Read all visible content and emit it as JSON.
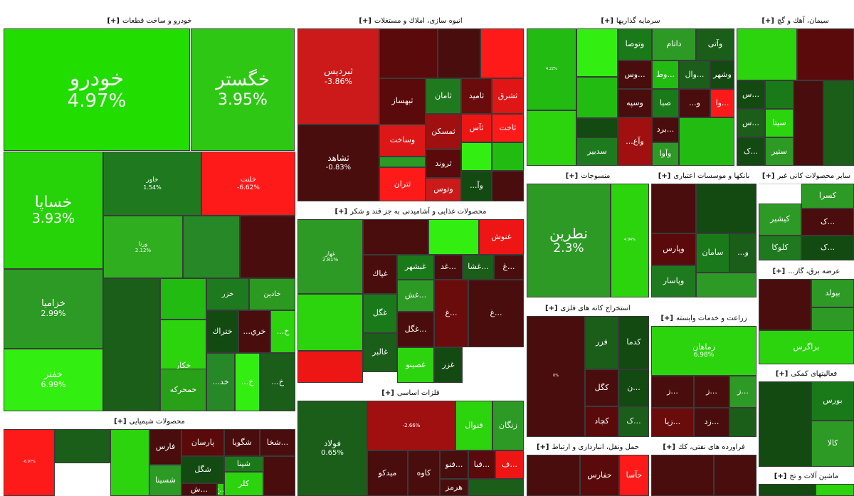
{
  "sectors": [
    {
      "title": "خودرو و ساخت قطعات",
      "expand": "[+]",
      "tiles": [
        {
          "symbol": "خودرو",
          "change": "4.97%",
          "color": "#22dd00"
        },
        {
          "symbol": "خگستر",
          "change": "3.95%",
          "color": "#2ec814"
        },
        {
          "symbol": "خساپا",
          "change": "3.93%",
          "color": "#26d208"
        },
        {
          "symbol": "خاور",
          "change": "1.54%",
          "color": "#1f7a1f"
        },
        {
          "symbol": "خلنت",
          "change": "-6.62%",
          "color": "#ff1a1a"
        },
        {
          "symbol": "ورنا",
          "change": "2.12%",
          "color": "#2fae20"
        },
        {
          "symbol": "",
          "change": "",
          "color": "#268826"
        },
        {
          "symbol": "",
          "change": "",
          "color": "#4a0d0d"
        },
        {
          "symbol": "خزامیا",
          "change": "2.99%",
          "color": "#2c9a24"
        },
        {
          "symbol": "",
          "change": "",
          "color": "#1a5e1a"
        },
        {
          "symbol": "",
          "change": "",
          "color": "#22bb12"
        },
        {
          "symbol": "",
          "change": "",
          "color": "#33ee11"
        },
        {
          "symbol": "خزر",
          "change": "",
          "color": "#1e7a1e"
        },
        {
          "symbol": "خادین",
          "change": "",
          "color": "#2c9a20"
        },
        {
          "symbol": "خکار",
          "change": "",
          "color": "#2bd40d"
        },
        {
          "symbol": "خفنر",
          "change": "6.99%",
          "color": "#33ee11"
        },
        {
          "symbol": "خمحرکه",
          "change": "",
          "color": "#28a018"
        },
        {
          "symbol": "ختراك",
          "change": "",
          "color": "#124a12"
        },
        {
          "symbol": "خري...",
          "change": "",
          "color": "#4a0d0d"
        },
        {
          "symbol": "خ...",
          "change": "",
          "color": "#2bd40d"
        },
        {
          "symbol": "خد...",
          "change": "",
          "color": "#268826"
        },
        {
          "symbol": "خ...",
          "change": "",
          "color": "#33ee11"
        },
        {
          "symbol": "خ...",
          "change": "",
          "color": "#1a5e1a"
        }
      ]
    },
    {
      "title": "انبوه سازی، املاك و مستغلات",
      "expand": "[+]",
      "tiles": [
        {
          "symbol": "ثبردیس",
          "change": "-3.86%",
          "color": "#cc1a1a"
        },
        {
          "symbol": "",
          "change": "",
          "color": "#5a0a0a"
        },
        {
          "symbol": "",
          "change": "",
          "color": "#4a0d0d"
        },
        {
          "symbol": "",
          "change": "",
          "color": "#ff1a1a"
        },
        {
          "symbol": "ثبهساز",
          "change": "",
          "color": "#5a0a0a"
        },
        {
          "symbol": "ثامان",
          "change": "",
          "color": "#1f7a1f"
        },
        {
          "symbol": "ثامید",
          "change": "",
          "color": "#6a0c0c"
        },
        {
          "symbol": "ثشرق",
          "change": "",
          "color": "#e01515"
        },
        {
          "symbol": "ثشاهد",
          "change": "-0.83%",
          "color": "#4a0d0d"
        },
        {
          "symbol": "وساخت",
          "change": "",
          "color": "#dd1717"
        },
        {
          "symbol": "ثمسكن",
          "change": "",
          "color": "#a01010"
        },
        {
          "symbol": "ثآس",
          "change": "",
          "color": "#ee1515"
        },
        {
          "symbol": "ثاخت",
          "change": "",
          "color": "#ff1a1a"
        },
        {
          "symbol": "ثروند",
          "change": "",
          "color": "#5a0a0a"
        },
        {
          "symbol": "",
          "change": "",
          "color": "#33ee11"
        },
        {
          "symbol": "",
          "change": "",
          "color": "#22bb12"
        },
        {
          "symbol": "ثتران",
          "change": "",
          "color": "#ff1a1a"
        },
        {
          "symbol": "وتوس",
          "change": "",
          "color": "#cc1a1a"
        },
        {
          "symbol": "وآ...",
          "change": "",
          "color": "#124a12"
        },
        {
          "symbol": "",
          "change": "",
          "color": "#4a0d0d"
        },
        {
          "symbol": "",
          "change": "",
          "color": "#2c9a24"
        }
      ]
    },
    {
      "title": "سرمایه گذاریها",
      "expand": "[+]",
      "tiles": [
        {
          "symbol": "",
          "change": "4.22%",
          "color": "#22bb12"
        },
        {
          "symbol": "",
          "change": "",
          "color": "#33ee11"
        },
        {
          "symbol": "وتوصا",
          "change": "",
          "color": "#1a7a1a"
        },
        {
          "symbol": "داتام",
          "change": "",
          "color": "#2c9a24"
        },
        {
          "symbol": "وآتی",
          "change": "",
          "color": "#1a5e1a"
        },
        {
          "symbol": "",
          "change": "",
          "color": "#22bb12"
        },
        {
          "symbol": "...وس",
          "change": "",
          "color": "#4a0d0d"
        },
        {
          "symbol": "...وط",
          "change": "",
          "color": "#22bb12"
        },
        {
          "symbol": "...وال",
          "change": "",
          "color": "#1a5e1a"
        },
        {
          "symbol": "وشهر",
          "change": "",
          "color": "#124a12"
        },
        {
          "symbol": "",
          "change": "",
          "color": "#124a12"
        },
        {
          "symbol": "وسپه",
          "change": "",
          "color": "#4a0d0d"
        },
        {
          "symbol": "صبا",
          "change": "",
          "color": "#1a7a1a"
        },
        {
          "symbol": "و...",
          "change": "",
          "color": "#4a0d0d"
        },
        {
          "symbol": "...وا",
          "change": "",
          "color": "#ff1a1a"
        },
        {
          "symbol": "",
          "change": "",
          "color": "#2bd40d"
        },
        {
          "symbol": "...برد",
          "change": "",
          "color": "#4a0d0d"
        },
        {
          "symbol": "وآوا",
          "change": "",
          "color": "#2c9a24"
        },
        {
          "symbol": "سدبیر",
          "change": "",
          "color": "#1e7a1e"
        },
        {
          "symbol": "وآع...",
          "change": "",
          "color": "#a01010"
        },
        {
          "symbol": "",
          "change": "",
          "color": "#22bb12"
        }
      ]
    },
    {
      "title": "سیمان، آهك و گچ",
      "expand": "[+]",
      "tiles": [
        {
          "symbol": "",
          "change": "",
          "color": "#2bd40d"
        },
        {
          "symbol": "",
          "change": "",
          "color": "#5a0a0a"
        },
        {
          "symbol": "...س",
          "change": "",
          "color": "#124a12"
        },
        {
          "symbol": "",
          "change": "",
          "color": "#1a7a1a"
        },
        {
          "symbol": "...س",
          "change": "",
          "color": "#1a5e1a"
        },
        {
          "symbol": "...ک",
          "change": "",
          "color": "#124a12"
        },
        {
          "symbol": "سیتا",
          "change": "",
          "color": "#2bd40d"
        },
        {
          "symbol": "ستیر",
          "change": "",
          "color": "#2c9a24"
        },
        {
          "symbol": "",
          "change": "",
          "color": "#4a0d0d"
        },
        {
          "symbol": "",
          "change": "",
          "color": "#1a5e1a"
        }
      ]
    },
    {
      "title": "منسوجات",
      "expand": "[+]",
      "tiles": [
        {
          "symbol": "نطرین",
          "change": "2.3%",
          "color": "#2c9a24"
        },
        {
          "symbol": "",
          "change": "4.94%",
          "color": "#2bd40d"
        }
      ]
    },
    {
      "title": "بانکها و موسسات اعتباری",
      "expand": "[+]",
      "tiles": [
        {
          "symbol": "",
          "change": "",
          "color": "#4a0d0d"
        },
        {
          "symbol": "",
          "change": "",
          "color": "#124a12"
        },
        {
          "symbol": "وپارس",
          "change": "",
          "color": "#5a0a0a"
        },
        {
          "symbol": "سامان",
          "change": "",
          "color": "#1a7a1a"
        },
        {
          "symbol": "و...",
          "change": "",
          "color": "#1a5e1a"
        },
        {
          "symbol": "وپاسار",
          "change": "",
          "color": "#1e7a1e"
        },
        {
          "symbol": "",
          "change": "",
          "color": "#2c9a24"
        }
      ]
    },
    {
      "title": "سایر محصولات کانی غیر",
      "expand": "[+]",
      "tiles": [
        {
          "symbol": "کسرا",
          "change": "",
          "color": "#2c9a24"
        },
        {
          "symbol": "کیشیر",
          "change": "",
          "color": "#2c9a24"
        },
        {
          "symbol": "...ک",
          "change": "",
          "color": "#4a0d0d"
        },
        {
          "symbol": "کلوکا",
          "change": "",
          "color": "#1f7a1f"
        },
        {
          "symbol": "...ک",
          "change": "",
          "color": "#124a12"
        }
      ]
    },
    {
      "title": "عرضه برق، گاز...",
      "expand": "[+]",
      "tiles": [
        {
          "symbol": "بپولد",
          "change": "",
          "color": "#2c9a24"
        },
        {
          "symbol": "",
          "change": "",
          "color": "#4a0d0d"
        },
        {
          "symbol": "",
          "change": "",
          "color": "#2c9a24"
        },
        {
          "symbol": "بزاگرس",
          "change": "",
          "color": "#2bd40d"
        }
      ]
    },
    {
      "title": "محصولات غذایی و آشامیدنی به جز قند و شکر",
      "expand": "[+]",
      "tiles": [
        {
          "symbol": "غنوش",
          "change": "",
          "color": "#ee1515"
        },
        {
          "symbol": "",
          "change": "",
          "color": "#4a0d0d"
        },
        {
          "symbol": "",
          "change": "",
          "color": "#33ee11"
        },
        {
          "symbol": "غهاز",
          "change": "2.81%",
          "color": "#2c9a24"
        },
        {
          "symbol": "غپاك",
          "change": "",
          "color": "#4a0d0d"
        },
        {
          "symbol": "غبشهر",
          "change": "",
          "color": "#1a7a1a"
        },
        {
          "symbol": "...غد",
          "change": "",
          "color": "#4a0d0d"
        },
        {
          "symbol": "...غشا",
          "change": "",
          "color": "#1a5e1a"
        },
        {
          "symbol": "...غ",
          "change": "",
          "color": "#4a0d0d"
        },
        {
          "symbol": "",
          "change": "",
          "color": "#2bd40d"
        },
        {
          "symbol": "...غش",
          "change": "",
          "color": "#2c9a24"
        },
        {
          "symbol": "غگل",
          "change": "",
          "color": "#1a7a1a"
        },
        {
          "symbol": "...غگل",
          "change": "",
          "color": "#4a0d0d"
        },
        {
          "symbol": "غالبر",
          "change": "",
          "color": "#1a5e1a"
        },
        {
          "symbol": "غصینو",
          "change": "",
          "color": "#2bd40d"
        },
        {
          "symbol": "غزر",
          "change": "",
          "color": "#124a12"
        },
        {
          "symbol": "...غ",
          "change": "",
          "color": "#6a0c0c"
        },
        {
          "symbol": "...غ",
          "change": "",
          "color": "#4a0d0d"
        },
        {
          "symbol": "",
          "change": "",
          "color": "#ee1515"
        }
      ]
    },
    {
      "title": "فلزات اساسی",
      "expand": "[+]",
      "tiles": [
        {
          "symbol": "فولاد",
          "change": "0.65%",
          "color": "#1a5e1a"
        },
        {
          "symbol": "",
          "change": "-2.66%",
          "color": "#a01010"
        },
        {
          "symbol": "فنوال",
          "change": "",
          "color": "#2bd40d"
        },
        {
          "symbol": "زنگان",
          "change": "",
          "color": "#2c9a24"
        },
        {
          "symbol": "میدکو",
          "change": "",
          "color": "#4a0d0d"
        },
        {
          "symbol": "کاوه",
          "change": "",
          "color": "#4a0d0d"
        },
        {
          "symbol": "...فنو",
          "change": "",
          "color": "#4a0d0d"
        },
        {
          "symbol": "...فبا",
          "change": "",
          "color": "#5a0a0a"
        },
        {
          "symbol": "...ف",
          "change": "",
          "color": "#ee1515"
        },
        {
          "symbol": "هرمز",
          "change": "",
          "color": "#4a0d0d"
        },
        {
          "symbol": "",
          "change": "",
          "color": "#1a5e1a"
        }
      ]
    },
    {
      "title": "استخراج کانه های فلزی",
      "expand": "[+]",
      "tiles": [
        {
          "symbol": "",
          "change": "0%",
          "color": "#4a0d0d"
        },
        {
          "symbol": "فزر",
          "change": "",
          "color": "#1a5e1a"
        },
        {
          "symbol": "کدما",
          "change": "",
          "color": "#124a12"
        },
        {
          "symbol": "کگل",
          "change": "",
          "color": "#4a0d0d"
        },
        {
          "symbol": "...ن",
          "change": "",
          "color": "#124a12"
        },
        {
          "symbol": "کچاد",
          "change": "",
          "color": "#5a0a0a"
        },
        {
          "symbol": "...ک",
          "change": "",
          "color": "#1a5e1a"
        }
      ]
    },
    {
      "title": "زراعت و خدمات وابسته",
      "expand": "[+]",
      "tiles": [
        {
          "symbol": "زماهان",
          "change": "6.98%",
          "color": "#2bd40d"
        },
        {
          "symbol": "...ز",
          "change": "",
          "color": "#4a0d0d"
        },
        {
          "symbol": "...ز",
          "change": "",
          "color": "#4a0d0d"
        },
        {
          "symbol": "...ز",
          "change": "",
          "color": "#2c9a24"
        },
        {
          "symbol": "...زیا",
          "change": "",
          "color": "#6a0c0c"
        },
        {
          "symbol": "...زد",
          "change": "",
          "color": "#4a0d0d"
        },
        {
          "symbol": "",
          "change": "",
          "color": "#1a5e1a"
        }
      ]
    },
    {
      "title": "فعالیتهای کمکی",
      "expand": "[+]",
      "tiles": [
        {
          "symbol": "بورس",
          "change": "",
          "color": "#1a7a1a"
        },
        {
          "symbol": "",
          "change": "",
          "color": "#124a12"
        },
        {
          "symbol": "کالا",
          "change": "",
          "color": "#2c9a24"
        }
      ]
    },
    {
      "title": "محصولات شیمیایی",
      "expand": "[+]",
      "tiles": [
        {
          "symbol": "",
          "change": "-6.97%",
          "color": "#ff1a1a"
        },
        {
          "symbol": "",
          "change": "",
          "color": "#1a5e1a"
        },
        {
          "symbol": "",
          "change": "",
          "color": "#2bd40d"
        },
        {
          "symbol": "فارس",
          "change": "",
          "color": "#4a0d0d"
        },
        {
          "symbol": "پارسان",
          "change": "",
          "color": "#5a0a0a"
        },
        {
          "symbol": "شگویا",
          "change": "",
          "color": "#4a0d0d"
        },
        {
          "symbol": "...شخا",
          "change": "",
          "color": "#4a0d0d"
        },
        {
          "symbol": "شپنا",
          "change": "",
          "color": "#1a7a1a"
        },
        {
          "symbol": "شگل",
          "change": "",
          "color": "#124a12"
        },
        {
          "symbol": "کلر",
          "change": "",
          "color": "#2bd40d"
        },
        {
          "symbol": "",
          "change": "",
          "color": "#4a0d0d"
        },
        {
          "symbol": "شسینا",
          "change": "",
          "color": "#2c9a24"
        },
        {
          "symbol": "...ش",
          "change": "",
          "color": "#4a0d0d"
        },
        {
          "symbol": "...ج",
          "change": "",
          "color": "#2bd40d"
        }
      ]
    },
    {
      "title": "حمل ونقل، انبارداری و ارتباط",
      "expand": "[+]",
      "tiles": [
        {
          "symbol": "",
          "change": "",
          "color": "#4a0d0d"
        },
        {
          "symbol": "حفارس",
          "change": "",
          "color": "#5a0a0a"
        },
        {
          "symbol": "حآسا",
          "change": "",
          "color": "#ff1a1a"
        }
      ]
    },
    {
      "title": "فراورده های نفتی، کك",
      "expand": "[+]",
      "tiles": [
        {
          "symbol": "",
          "change": "",
          "color": "#4a0d0d"
        },
        {
          "symbol": "",
          "change": "",
          "color": "#4a0d0d"
        }
      ]
    },
    {
      "title": "ماشین آلات و تج",
      "expand": "[+]",
      "tiles": [
        {
          "symbol": "",
          "change": "",
          "color": "#124a12"
        },
        {
          "symbol": "",
          "change": "",
          "color": "#2bd40d"
        }
      ]
    }
  ]
}
